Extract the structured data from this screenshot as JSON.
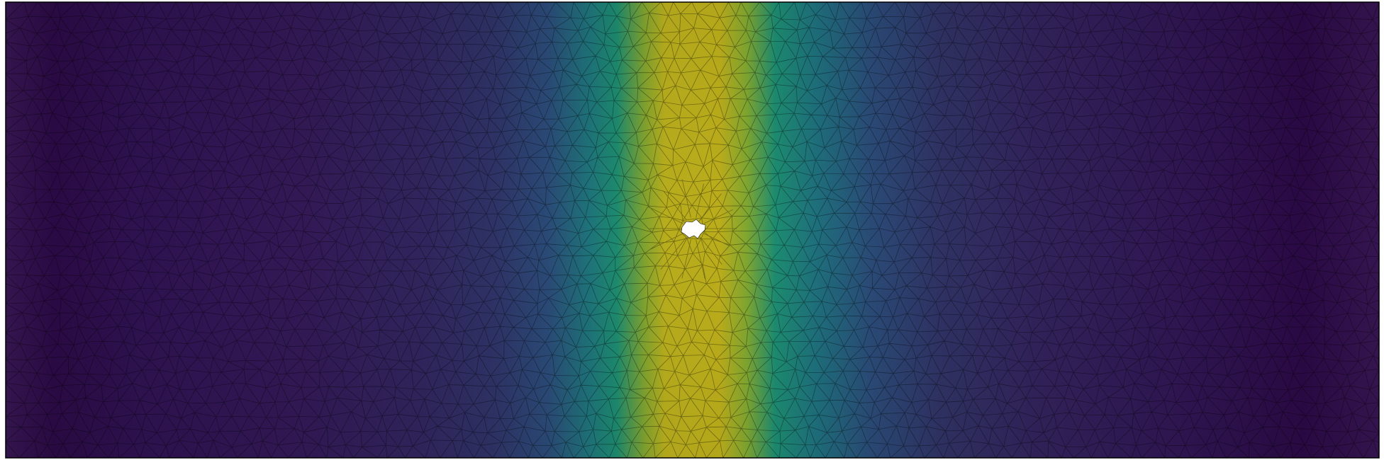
{
  "figure": {
    "colormap": "viridis",
    "colormap_stops": [
      "#440154",
      "#3b528b",
      "#21918c",
      "#5ec962",
      "#fde725"
    ],
    "mesh": "triangular",
    "mesh_edge_color": "#000000",
    "frame_color": "#000000",
    "background_color": "#ffffff",
    "hole_color": "#ffffff",
    "field_colors": {
      "low": "#2d0f4a",
      "mid": "#2f6a8f",
      "teal": "#1d8a7a",
      "high": "#b7ad1c"
    }
  }
}
